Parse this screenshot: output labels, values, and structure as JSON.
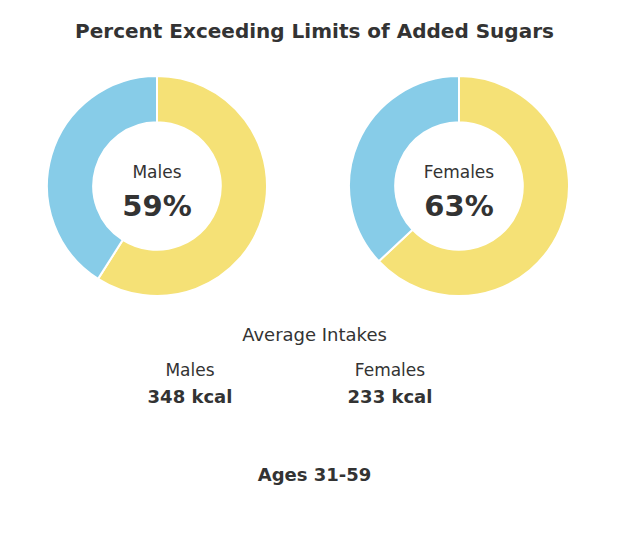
{
  "chart_data": [
    {
      "type": "pie",
      "title": "Percent Exceeding Limits of Added Sugars",
      "annotations": [
        "Males",
        "Males",
        "348 kcal",
        "Average Intakes",
        "Ages 31-59"
      ],
      "values": [
        59,
        41
      ],
      "value_labels": [
        "59%",
        null
      ],
      "colors": [
        "#f5e176",
        "#87cce8"
      ]
    },
    {
      "type": "pie",
      "annotations": [
        "Females",
        "Females",
        "233 kcal"
      ],
      "values": [
        63,
        37
      ],
      "value_labels": [
        "63%",
        null
      ],
      "colors": [
        "#f5e176",
        "#87cce8"
      ]
    }
  ]
}
